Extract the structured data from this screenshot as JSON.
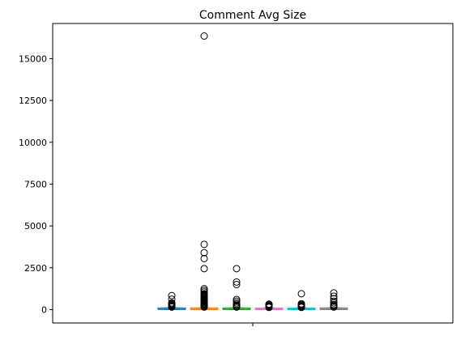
{
  "chart_data": {
    "type": "boxplot",
    "title": "Comment Avg Size",
    "xlabel": "",
    "ylabel": "",
    "ylim": [
      -800,
      17100
    ],
    "yticks": [
      0,
      2500,
      5000,
      7500,
      10000,
      12500,
      15000
    ],
    "ytick_labels": [
      "0",
      "2500",
      "5000",
      "7500",
      "10000",
      "12500",
      "15000"
    ],
    "grid": false,
    "legend": "none",
    "series": [
      {
        "color": "#1f77b4",
        "median": 30,
        "q1": 10,
        "q3": 60,
        "whisker_low": 0,
        "whisker_high": 120,
        "outliers": [
          150,
          180,
          220,
          260,
          300,
          350,
          400,
          620,
          840
        ]
      },
      {
        "color": "#ff7f0e",
        "median": 30,
        "q1": 10,
        "q3": 60,
        "whisker_low": 0,
        "whisker_high": 120,
        "outliers": [
          150,
          200,
          250,
          300,
          350,
          400,
          450,
          500,
          550,
          600,
          650,
          700,
          750,
          800,
          850,
          900,
          950,
          1050,
          1150,
          1250,
          2450,
          3050,
          3400,
          3900,
          16350
        ]
      },
      {
        "color": "#2ca02c",
        "median": 30,
        "q1": 10,
        "q3": 60,
        "whisker_low": 0,
        "whisker_high": 120,
        "outliers": [
          150,
          200,
          260,
          320,
          400,
          500,
          600,
          1500,
          1650,
          2450
        ]
      },
      {
        "color": "#e377c2",
        "median": 25,
        "q1": 10,
        "q3": 50,
        "whisker_low": 0,
        "whisker_high": 100,
        "outliers": [
          130,
          170,
          210,
          250,
          290,
          330
        ]
      },
      {
        "color": "#17becf",
        "median": 25,
        "q1": 10,
        "q3": 50,
        "whisker_low": 0,
        "whisker_high": 100,
        "outliers": [
          130,
          160,
          200,
          250,
          300,
          350,
          950
        ]
      },
      {
        "color": "#7f7f7f",
        "median": 30,
        "q1": 10,
        "q3": 60,
        "whisker_low": 0,
        "whisker_high": 120,
        "outliers": [
          150,
          200,
          250,
          300,
          400,
          500,
          650,
          800,
          1000
        ]
      }
    ]
  }
}
